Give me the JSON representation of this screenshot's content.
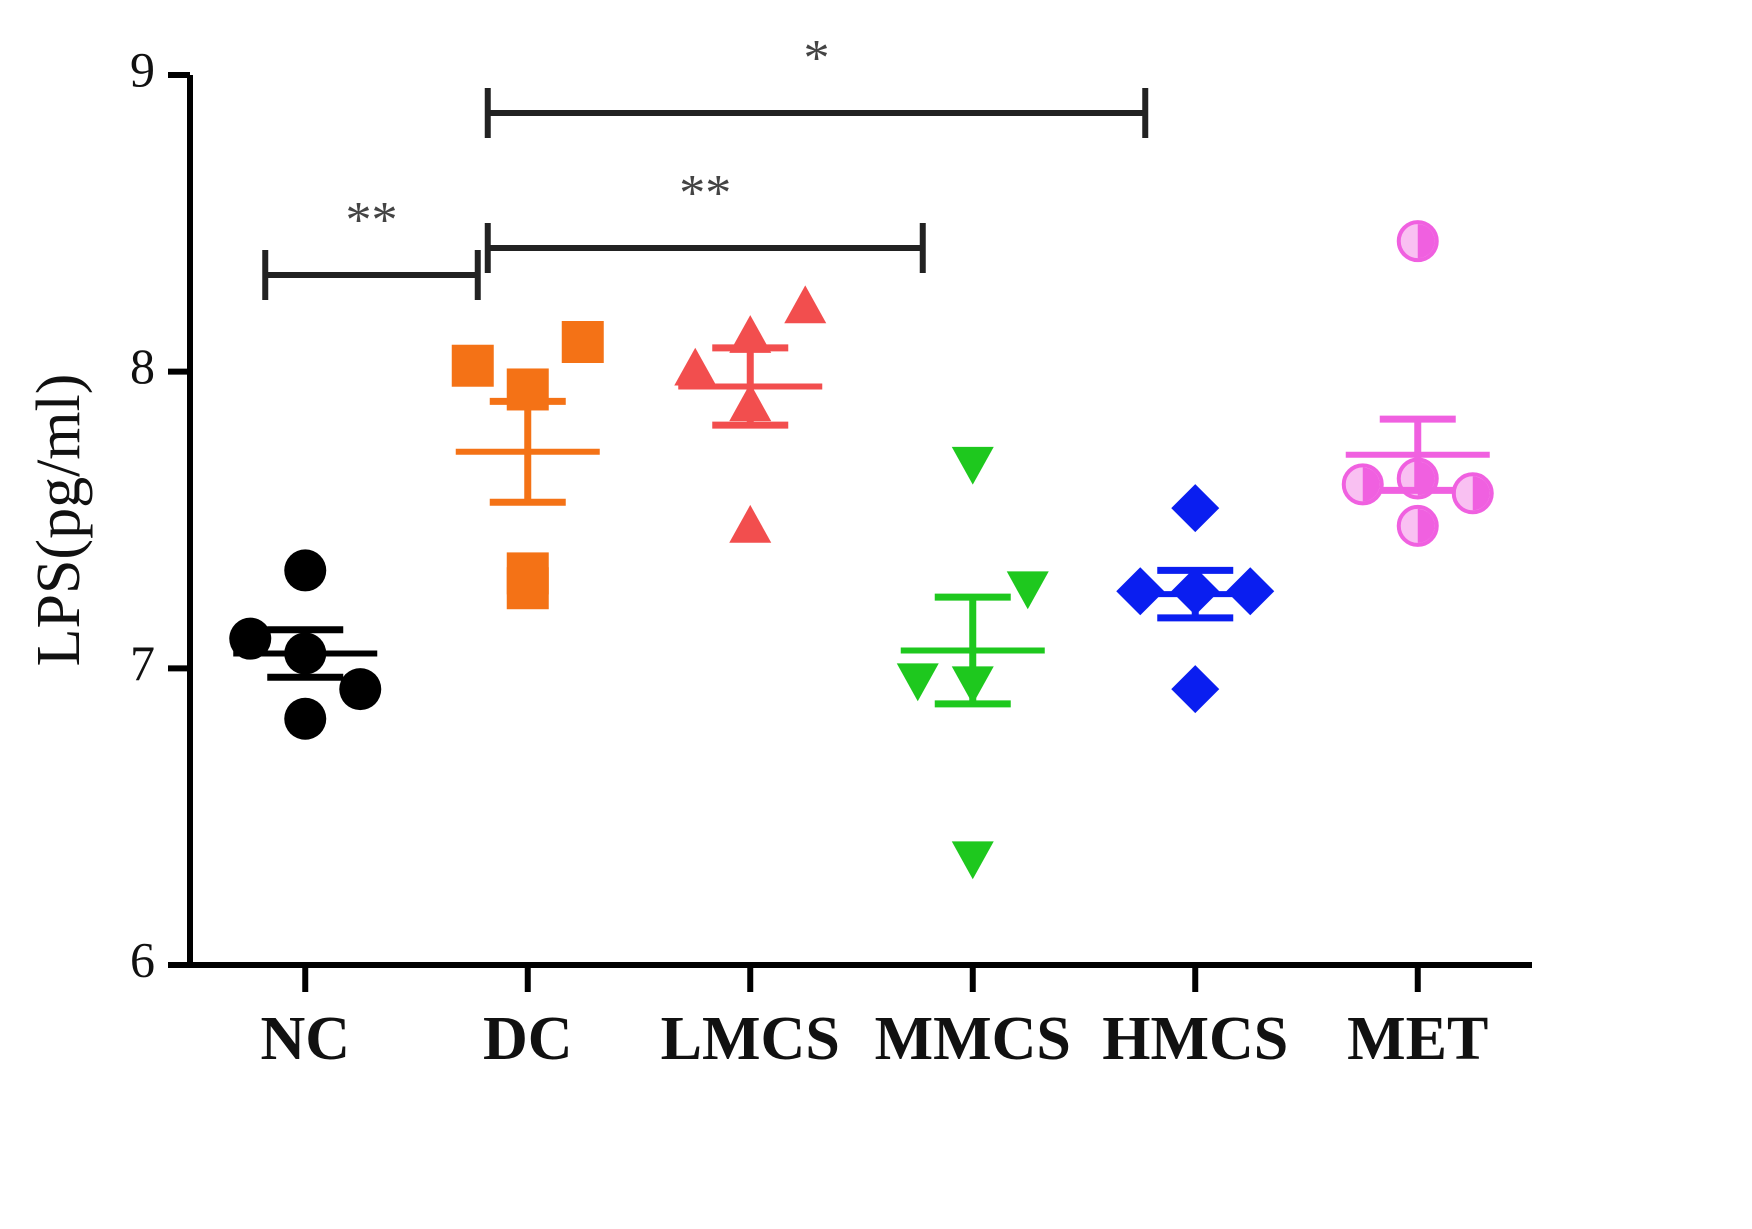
{
  "chart_data": {
    "type": "scatter-mean-sem",
    "y_label": "LPS(pg/ml)",
    "categories": [
      "NC",
      "DC",
      "LMCS",
      "MMCS",
      "HMCS",
      "MET"
    ],
    "groups": [
      {
        "color": "#000000",
        "marker": "circle",
        "values": [
          7.33,
          7.1,
          7.05,
          6.93,
          6.83
        ],
        "mean": 7.05,
        "sem": 0.08
      },
      {
        "color": "#f47216",
        "marker": "square",
        "values": [
          7.94,
          8.02,
          7.27,
          8.1,
          7.32
        ],
        "mean": 7.73,
        "sem": 0.17
      },
      {
        "color": "#f24e4e",
        "marker": "triangle-up",
        "values": [
          8.12,
          8.01,
          7.89,
          8.22,
          7.48
        ],
        "mean": 7.95,
        "sem": 0.13
      },
      {
        "color": "#1ec81e",
        "marker": "triangle-down",
        "values": [
          7.69,
          6.96,
          6.95,
          7.27,
          6.36
        ],
        "mean": 7.06,
        "sem": 0.18
      },
      {
        "color": "#0a1ef0",
        "marker": "diamond",
        "values": [
          7.54,
          7.26,
          7.26,
          7.26,
          6.93
        ],
        "mean": 7.25,
        "sem": 0.08
      },
      {
        "color": "#f060e0",
        "marker": "half-circle",
        "values": [
          8.44,
          7.62,
          7.64,
          7.59,
          7.48
        ],
        "mean": 7.72,
        "sem": 0.12
      }
    ],
    "ylim": [
      6,
      9
    ],
    "yticks": [
      6,
      7,
      8,
      9
    ],
    "annotations": [
      {
        "text": "**",
        "groups": [
          "NC",
          "DC"
        ]
      },
      {
        "text": "**",
        "groups": [
          "DC",
          "MMCS"
        ]
      },
      {
        "text": "*",
        "groups": [
          "DC",
          "HMCS"
        ]
      }
    ]
  }
}
